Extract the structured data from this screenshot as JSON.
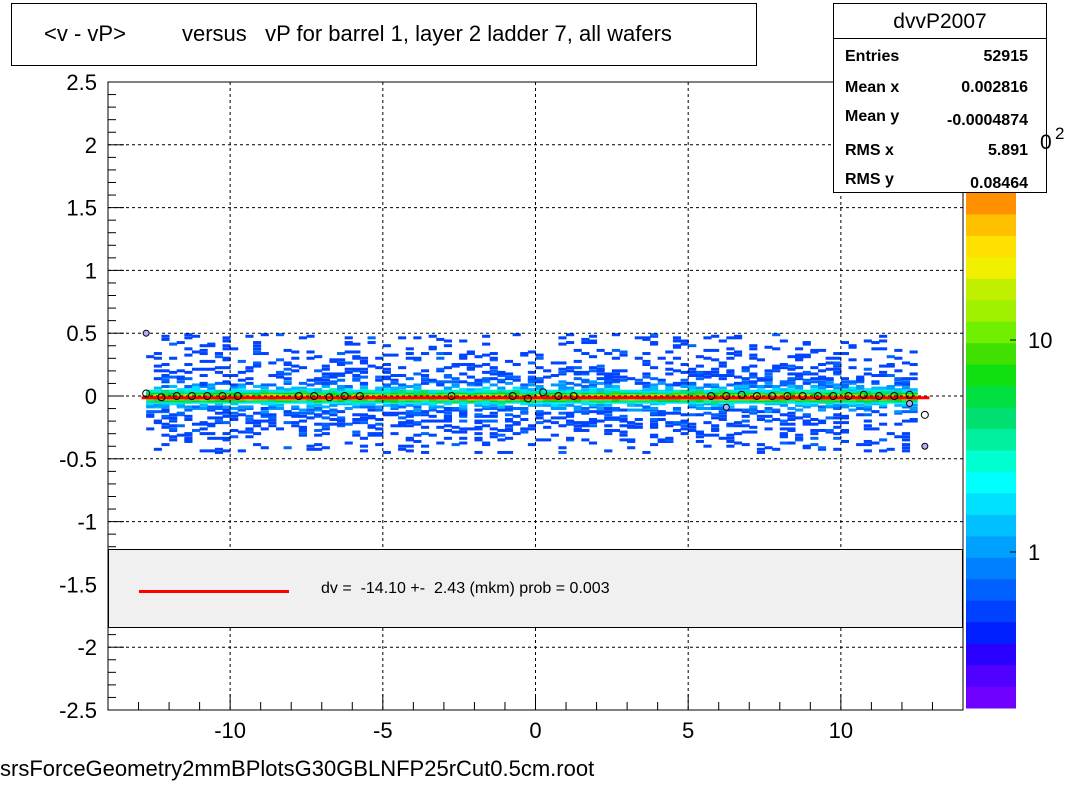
{
  "title": {
    "part1": "<v - vP>",
    "part2": "versus   vP for barrel 1, layer 2 ladder 7, all wafers"
  },
  "stats": {
    "name": "dvvP2007",
    "rows": [
      {
        "key": "Entries",
        "value": "52915"
      },
      {
        "key": "Mean x",
        "value": "0.002816"
      },
      {
        "key": "Mean y",
        "value": "-0.0004874"
      },
      {
        "key": "RMS x",
        "value": "5.891"
      },
      {
        "key": "RMS y",
        "value": "0.08464"
      }
    ]
  },
  "legend": {
    "text": "dv =  -14.10 +-  2.43 (mkm) prob = 0.003",
    "color": "#ff0000"
  },
  "footer": "srsForceGeometry2mmBPlotsG30GBLNFP25rCut0.5cm.root",
  "colorbar": {
    "labels": [
      "1",
      "10"
    ],
    "exponent": "2"
  },
  "chart_data": {
    "type": "heatmap",
    "x_range": [
      -14,
      14
    ],
    "y_range": [
      -2.5,
      2.5
    ],
    "x_ticks": [
      "-10",
      "-5",
      "0",
      "5",
      "10"
    ],
    "y_ticks": [
      "2.5",
      "2",
      "1.5",
      "1",
      "0.5",
      "0",
      "-0.5",
      "-1",
      "-1.5",
      "-2",
      "-2.5"
    ],
    "grid": true,
    "z_scale": "log",
    "profile_points": [
      {
        "x": -12.75,
        "y": 0.02
      },
      {
        "x": -12.25,
        "y": -0.01
      },
      {
        "x": -11.75,
        "y": 0.0
      },
      {
        "x": -11.25,
        "y": 0.0
      },
      {
        "x": -10.75,
        "y": 0.0
      },
      {
        "x": -10.25,
        "y": 0.0
      },
      {
        "x": -9.75,
        "y": 0.0
      },
      {
        "x": -7.75,
        "y": 0.0
      },
      {
        "x": -7.25,
        "y": 0.0
      },
      {
        "x": -6.75,
        "y": -0.01
      },
      {
        "x": -6.25,
        "y": 0.0
      },
      {
        "x": -5.75,
        "y": 0.0
      },
      {
        "x": -2.75,
        "y": 0.0
      },
      {
        "x": -0.75,
        "y": 0.0
      },
      {
        "x": -0.25,
        "y": -0.02
      },
      {
        "x": 0.25,
        "y": 0.03
      },
      {
        "x": 0.75,
        "y": 0.0
      },
      {
        "x": 1.25,
        "y": 0.0
      },
      {
        "x": 5.75,
        "y": 0.0
      },
      {
        "x": 6.25,
        "y": 0.0
      },
      {
        "x": 6.75,
        "y": 0.01
      },
      {
        "x": 7.25,
        "y": 0.0
      },
      {
        "x": 7.75,
        "y": 0.0
      },
      {
        "x": 8.25,
        "y": 0.0
      },
      {
        "x": 8.75,
        "y": 0.0
      },
      {
        "x": 9.25,
        "y": 0.0
      },
      {
        "x": 9.75,
        "y": 0.0
      },
      {
        "x": 10.25,
        "y": 0.0
      },
      {
        "x": 10.75,
        "y": 0.01
      },
      {
        "x": 11.25,
        "y": 0.0
      },
      {
        "x": 11.75,
        "y": 0.0
      },
      {
        "x": 12.25,
        "y": 0.01
      },
      {
        "x": 12.75,
        "y": -0.15
      }
    ],
    "outlier_points": [
      {
        "x": -12.75,
        "y": 0.5
      },
      {
        "x": 12.75,
        "y": -0.4
      },
      {
        "x": 12.25,
        "y": -0.06
      },
      {
        "x": 6.25,
        "y": -0.09
      }
    ],
    "fit_line": {
      "x": [
        -12.9,
        12.9
      ],
      "y": [
        -0.014,
        -0.014
      ]
    }
  }
}
